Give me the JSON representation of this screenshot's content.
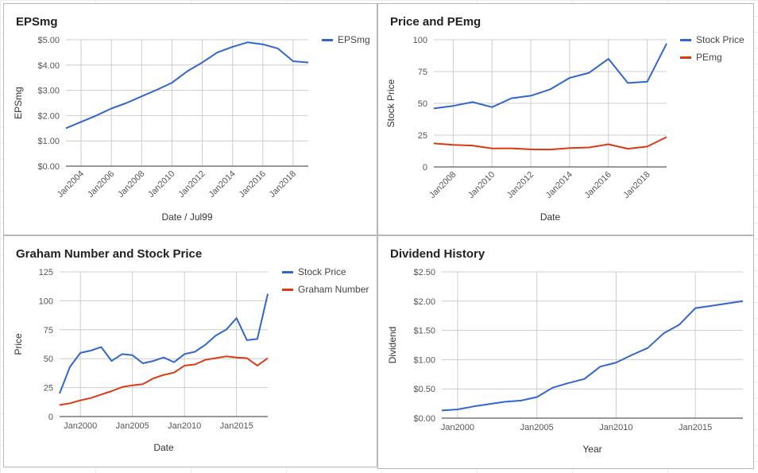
{
  "colors": {
    "blue": "#3366cc",
    "red": "#dc3912",
    "grid": "#cccccc",
    "axis": "#333333"
  },
  "chart_data": [
    {
      "type": "line",
      "title": "EPSmg",
      "xlabel": "Date / Jul99",
      "ylabel": "EPSmg",
      "x_range": [
        2003,
        2019
      ],
      "ylim": [
        0,
        5
      ],
      "yticks": [
        0,
        1,
        2,
        3,
        4,
        5
      ],
      "ytick_labels": [
        "$0.00",
        "$1.00",
        "$2.00",
        "$3.00",
        "$4.00",
        "$5.00"
      ],
      "xticks": [
        2004,
        2006,
        2008,
        2010,
        2012,
        2014,
        2016,
        2018
      ],
      "xtick_labels": [
        "Jan2004",
        "Jan2006",
        "Jan2008",
        "Jan2010",
        "Jan2012",
        "Jan2014",
        "Jan2016",
        "Jan2018"
      ],
      "xtick_rotate": true,
      "legend_position": "top-right",
      "series": [
        {
          "name": "EPSmg",
          "color": "#3366cc",
          "x": [
            2003,
            2004,
            2005,
            2006,
            2007,
            2008,
            2009,
            2010,
            2011,
            2012,
            2013,
            2014,
            2015,
            2016,
            2017,
            2018,
            2019
          ],
          "y": [
            1.5,
            1.75,
            2.0,
            2.28,
            2.5,
            2.76,
            3.02,
            3.3,
            3.75,
            4.1,
            4.5,
            4.72,
            4.9,
            4.82,
            4.65,
            4.15,
            4.1
          ]
        }
      ]
    },
    {
      "type": "line",
      "title": "Price and PEmg",
      "xlabel": "Date",
      "ylabel": "Stock Price",
      "x_range": [
        2007,
        2019
      ],
      "ylim": [
        0,
        100
      ],
      "yticks": [
        0,
        25,
        50,
        75,
        100
      ],
      "ytick_labels": [
        "0",
        "25",
        "50",
        "75",
        "100"
      ],
      "xticks": [
        2008,
        2010,
        2012,
        2014,
        2016,
        2018
      ],
      "xtick_labels": [
        "Jan2008",
        "Jan2010",
        "Jan2012",
        "Jan2014",
        "Jan2016",
        "Jan2018"
      ],
      "xtick_rotate": true,
      "legend_position": "top-right",
      "series": [
        {
          "name": "Stock Price",
          "color": "#3366cc",
          "x": [
            2007,
            2008,
            2009,
            2010,
            2011,
            2012,
            2013,
            2014,
            2015,
            2016,
            2017,
            2018,
            2019
          ],
          "y": [
            46,
            48,
            51,
            47,
            54,
            56,
            61,
            70,
            74,
            85,
            66,
            67,
            97
          ]
        },
        {
          "name": "PEmg",
          "color": "#dc3912",
          "x": [
            2007,
            2008,
            2009,
            2010,
            2011,
            2012,
            2013,
            2014,
            2015,
            2016,
            2017,
            2018,
            2019
          ],
          "y": [
            18.5,
            17.3,
            16.8,
            14.5,
            14.6,
            13.8,
            13.7,
            14.8,
            15.3,
            17.8,
            14.3,
            16.0,
            23.5
          ]
        }
      ]
    },
    {
      "type": "line",
      "title": "Graham Number and Stock Price",
      "xlabel": "Date",
      "ylabel": "Price",
      "x_range": [
        1998,
        2018
      ],
      "ylim": [
        0,
        125
      ],
      "yticks": [
        0,
        25,
        50,
        75,
        100,
        125
      ],
      "ytick_labels": [
        "0",
        "25",
        "50",
        "75",
        "100",
        "125"
      ],
      "xticks": [
        2000,
        2005,
        2010,
        2015
      ],
      "xtick_labels": [
        "Jan2000",
        "Jan2005",
        "Jan2010",
        "Jan2015"
      ],
      "xtick_rotate": false,
      "legend_position": "top-right",
      "series": [
        {
          "name": "Stock Price",
          "color": "#3366cc",
          "x": [
            1998,
            1999,
            2000,
            2001,
            2002,
            2003,
            2004,
            2005,
            2006,
            2007,
            2008,
            2009,
            2010,
            2011,
            2012,
            2013,
            2014,
            2015,
            2016,
            2017,
            2018
          ],
          "y": [
            20,
            43,
            55,
            57,
            60,
            48,
            54,
            53,
            46,
            48,
            51,
            47,
            54,
            56,
            62,
            70,
            75,
            85,
            66,
            67,
            106
          ]
        },
        {
          "name": "Graham Number",
          "color": "#dc3912",
          "x": [
            1998,
            1999,
            2000,
            2001,
            2002,
            2003,
            2004,
            2005,
            2006,
            2007,
            2008,
            2009,
            2010,
            2011,
            2012,
            2013,
            2014,
            2015,
            2016,
            2017,
            2018
          ],
          "y": [
            10,
            11.5,
            14,
            16,
            19,
            22,
            25.5,
            27,
            28,
            33,
            36,
            38,
            44,
            45,
            49,
            50.5,
            52,
            51,
            50.5,
            44,
            50.5
          ]
        }
      ]
    },
    {
      "type": "line",
      "title": "Dividend History",
      "xlabel": "Year",
      "ylabel": "Dividend",
      "x_range": [
        1999,
        2018
      ],
      "ylim": [
        0,
        2.5
      ],
      "yticks": [
        0,
        0.5,
        1.0,
        1.5,
        2.0,
        2.5
      ],
      "ytick_labels": [
        "$0.00",
        "$0.50",
        "$1.00",
        "$1.50",
        "$2.00",
        "$2.50"
      ],
      "xticks": [
        2000,
        2005,
        2010,
        2015
      ],
      "xtick_labels": [
        "Jan2000",
        "Jan2005",
        "Jan2010",
        "Jan2015"
      ],
      "xtick_rotate": false,
      "legend_position": "none",
      "series": [
        {
          "name": "",
          "color": "#3366cc",
          "x": [
            1999,
            2000,
            2001,
            2002,
            2003,
            2004,
            2005,
            2006,
            2007,
            2008,
            2009,
            2010,
            2011,
            2012,
            2013,
            2014,
            2015,
            2016,
            2017,
            2018
          ],
          "y": [
            0.13,
            0.15,
            0.2,
            0.24,
            0.28,
            0.3,
            0.36,
            0.52,
            0.6,
            0.67,
            0.88,
            0.95,
            1.08,
            1.2,
            1.45,
            1.6,
            1.88,
            1.92,
            1.96,
            2.0
          ]
        }
      ]
    }
  ]
}
